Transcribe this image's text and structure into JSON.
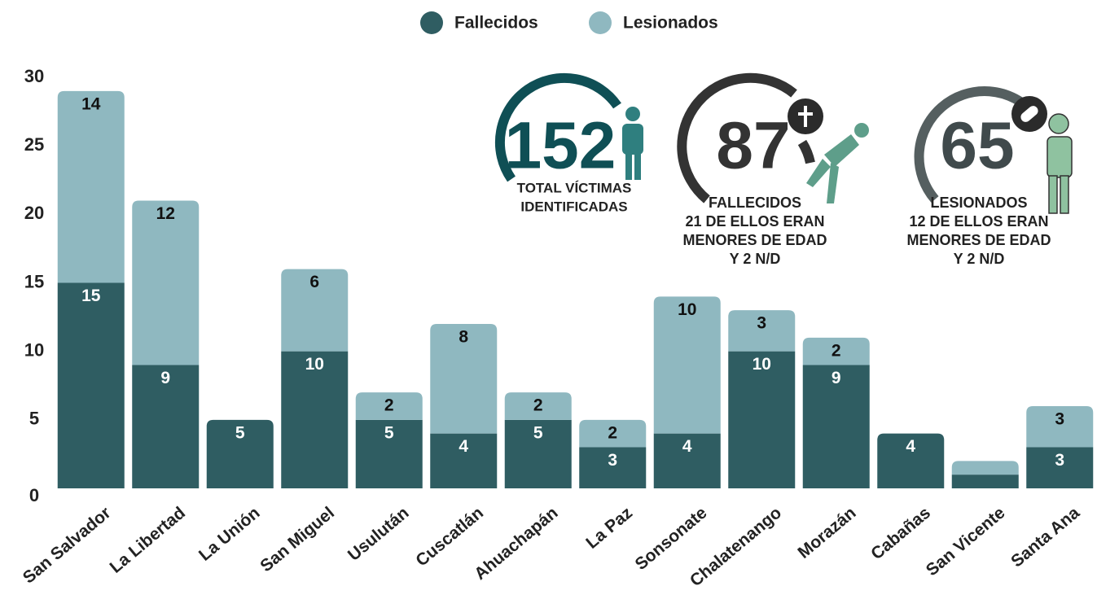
{
  "chart_data": {
    "type": "stacked_bar",
    "categories": [
      "San Salvador",
      "La Libertad",
      "La Unión",
      "San Miguel",
      "Usulután",
      "Cuscatlán",
      "Ahuachapán",
      "La Paz",
      "Sonsonate",
      "Chalatenango",
      "Morazán",
      "Cabañas",
      "San Vicente",
      "Santa Ana"
    ],
    "series": [
      {
        "name": "Fallecidos",
        "color": "#2f5d62",
        "label_color": "#ffffff",
        "values": [
          15,
          9,
          5,
          10,
          5,
          4,
          5,
          3,
          4,
          10,
          9,
          4,
          1,
          3
        ],
        "value_labels": [
          "15",
          "9",
          "5",
          "10",
          "5",
          "4",
          "5",
          "3",
          "4",
          "10",
          "9",
          "4",
          null,
          "3"
        ]
      },
      {
        "name": "Lesionados",
        "color": "#8fb8c0",
        "label_color": "#111111",
        "values": [
          14,
          12,
          0,
          6,
          2,
          8,
          2,
          2,
          10,
          3,
          2,
          0,
          1,
          3
        ],
        "value_labels": [
          "14",
          "12",
          null,
          "6",
          "2",
          "8",
          "2",
          "2",
          "10",
          "3",
          "2",
          null,
          null,
          "3"
        ]
      }
    ],
    "ylim": [
      0,
      30
    ],
    "yticks": [
      0,
      5,
      10,
      15,
      20,
      25,
      30
    ],
    "grid": false,
    "legend": "top",
    "annotations": [
      {
        "value": 152,
        "lines": [
          "TOTAL VÍCTIMAS",
          "IDENTIFICADAS"
        ]
      },
      {
        "value": 87,
        "lines": [
          "FALLECIDOS",
          "21 DE ELLOS ERAN",
          "MENORES DE EDAD",
          "Y 2 N/D"
        ]
      },
      {
        "value": 65,
        "lines": [
          "LESIONADOS",
          "12 DE ELLOS ERAN",
          "MENORES DE EDAD",
          "Y 2 N/D"
        ]
      }
    ]
  }
}
